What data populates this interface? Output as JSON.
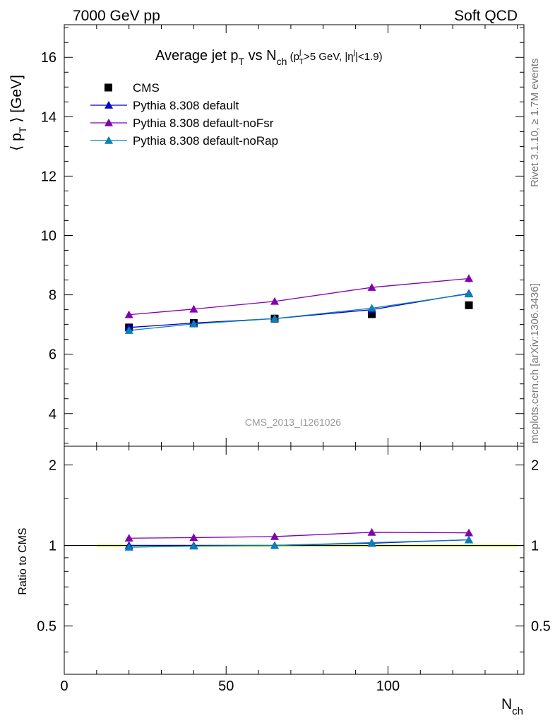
{
  "header": {
    "energy_label": "7000 GeV pp",
    "category_label": "Soft QCD",
    "analysis_id": "CMS_2013_I1261026",
    "side_label_top": "Rivet 3.1.10, ≥ 1.7M events",
    "side_label_bottom": "mcplots.cern.ch [arXiv:1306.3436]"
  },
  "colors": {
    "cms": "#000000",
    "default": "#0000cc",
    "noFsr": "#8000b0",
    "noRap": "#0a7fb8",
    "band": "#e4f7a0"
  },
  "chart_data": [
    {
      "type": "scatter",
      "title": "Average jet pT vs Nch (pTj>5 GeV, |ηj|<1.9)",
      "xlabel": "",
      "ylabel": "⟨ pT ⟩ [GeV]",
      "xlim": [
        0,
        142
      ],
      "ylim": [
        2.9,
        17.1
      ],
      "yticks": [
        4,
        6,
        8,
        10,
        12,
        14,
        16
      ],
      "x": [
        20,
        40,
        65,
        95,
        125
      ],
      "legend_position": "top-left",
      "series": [
        {
          "name": "CMS",
          "marker": "square",
          "values": [
            6.9,
            7.05,
            7.2,
            7.35,
            7.65
          ]
        },
        {
          "name": "Pythia 8.308 default",
          "marker": "triangle",
          "values": [
            6.9,
            7.05,
            7.2,
            7.5,
            8.05
          ]
        },
        {
          "name": "Pythia 8.308 default-noFsr",
          "marker": "triangle",
          "values": [
            7.33,
            7.52,
            7.78,
            8.25,
            8.55
          ]
        },
        {
          "name": "Pythia 8.308 default-noRap",
          "marker": "triangle",
          "values": [
            6.8,
            7.02,
            7.2,
            7.55,
            8.03
          ]
        }
      ]
    },
    {
      "type": "line",
      "title": "",
      "xlabel": "Nch",
      "ylabel": "Ratio to CMS",
      "xlim": [
        0,
        142
      ],
      "ylim": [
        0.33,
        2.35
      ],
      "log_y": true,
      "yticks": [
        0.5,
        1,
        2
      ],
      "xticks": [
        0,
        50,
        100
      ],
      "x": [
        20,
        40,
        65,
        95,
        125
      ],
      "reference_line": 1,
      "series": [
        {
          "name": "Pythia 8.308 default",
          "values": [
            1.0,
            1.0,
            1.0,
            1.02,
            1.05
          ]
        },
        {
          "name": "Pythia 8.308 default-noFsr",
          "values": [
            1.065,
            1.07,
            1.08,
            1.12,
            1.115
          ]
        },
        {
          "name": "Pythia 8.308 default-noRap",
          "values": [
            0.985,
            0.995,
            1.0,
            1.025,
            1.05
          ]
        }
      ]
    }
  ]
}
